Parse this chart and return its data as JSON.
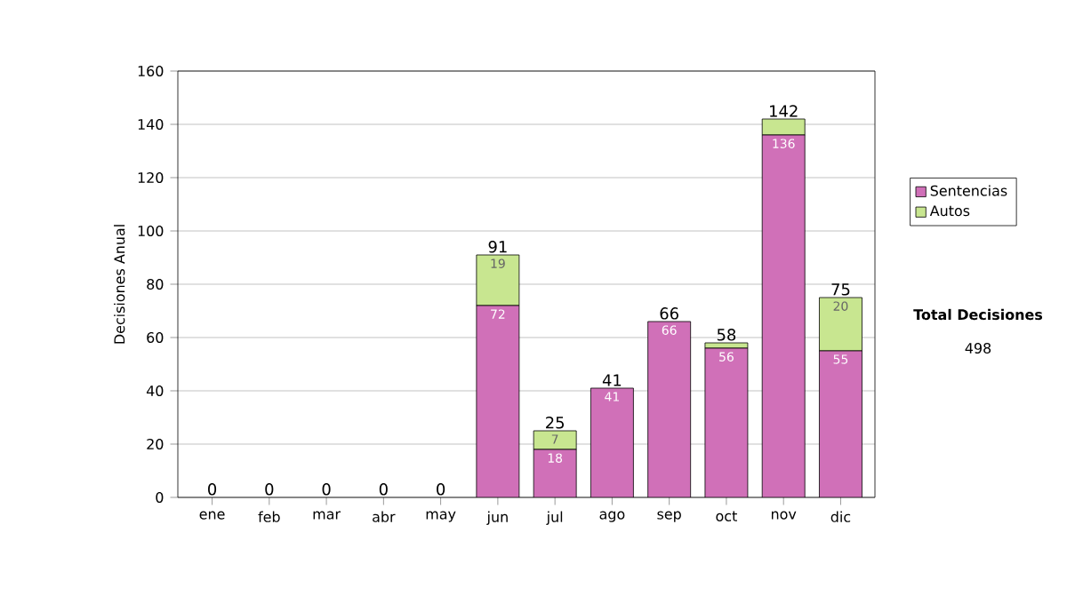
{
  "chart_data": {
    "type": "bar",
    "stacked": true,
    "ylabel": "Decisiones Anual",
    "categories": [
      "ene",
      "feb",
      "mar",
      "abr",
      "may",
      "jun",
      "jul",
      "ago",
      "sep",
      "oct",
      "nov",
      "dic"
    ],
    "series": [
      {
        "name": "Sentencias",
        "color": "#d070b8",
        "values": [
          0,
          0,
          0,
          0,
          0,
          72,
          18,
          41,
          66,
          56,
          136,
          55
        ],
        "value_labels": [
          null,
          null,
          null,
          null,
          null,
          "72",
          "18",
          "41",
          "66",
          "56",
          "136",
          "55"
        ]
      },
      {
        "name": "Autos",
        "color": "#c8e690",
        "values": [
          0,
          0,
          0,
          0,
          0,
          19,
          7,
          0,
          0,
          2,
          6,
          20
        ],
        "value_labels": [
          null,
          null,
          null,
          null,
          null,
          "19",
          "7",
          null,
          null,
          null,
          null,
          "20"
        ]
      }
    ],
    "totals": [
      "0",
      "0",
      "0",
      "0",
      "0",
      "91",
      "25",
      "41",
      "66",
      "58",
      "142",
      "75"
    ],
    "ylim": [
      0,
      160
    ],
    "yticks": [
      0,
      20,
      40,
      60,
      80,
      100,
      120,
      140,
      160
    ],
    "grid": "y",
    "legend": "right",
    "annotations": [
      "Total Decisiones",
      "498"
    ]
  }
}
